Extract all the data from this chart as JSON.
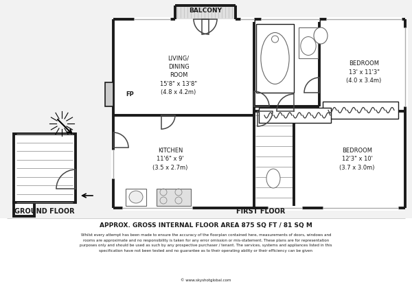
{
  "bg_color": "#f2f2f2",
  "wall_color": "#1a1a1a",
  "fill_white": "#ffffff",
  "fill_light": "#e8e8e8",
  "title_area": "APPROX. GROSS INTERNAL FLOOR AREA 875 SQ FT / 81 SQ M",
  "disclaimer": "Whilst every attempt has been made to ensure the accuracy of the floorplan contained here, measurements of doors, windows and\nrooms are approximate and no responsibility is taken for any error omission or mis-statement. These plans are for representation\npurposes only and should be used as such by any prospective purchaser / tenant. The services, systems and appliances listed in this\nspecification have not been tested and no guarantee as to their operating ability or their efficiency can be given",
  "website": "© www.skyshotglobal.com",
  "ground_floor_label": "GROUND FLOOR",
  "first_floor_label": "FIRST FLOOR",
  "living_label": "LIVING/\nDINING\nROOM\n15'8\" x 13'8\"\n(4.8 x 4.2m)",
  "kitchen_label": "KITCHEN\n11'6\" x 9'\n(3.5 x 2.7m)",
  "bed1_label": "BEDROOM\n13' x 11'3\"\n(4.0 x 3.4m)",
  "bed2_label": "BEDROOM\n12'3\" x 10'\n(3.7 x 3.0m)"
}
